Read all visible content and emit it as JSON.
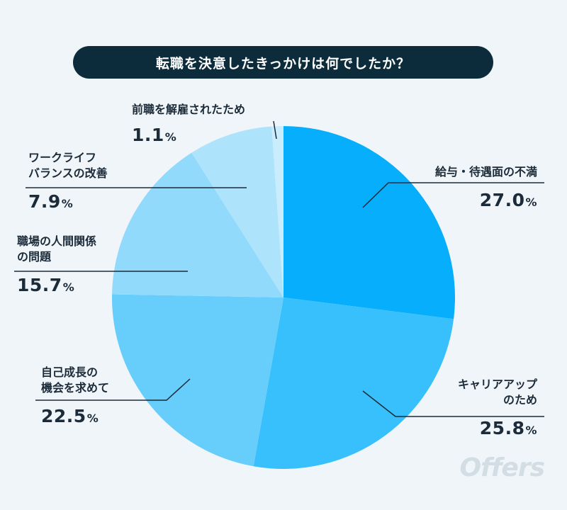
{
  "title": "転職を決意したきっかけは何でしたか？",
  "watermark": "Offers",
  "chart_data": {
    "type": "pie",
    "unit": "%",
    "start_angle_deg": 0,
    "direction": "clockwise",
    "colors": [
      "#06aefc",
      "#37c0fc",
      "#67cdfb",
      "#92dafc",
      "#aee3fc",
      "#c9edfd"
    ],
    "slices": [
      {
        "label_lines": [
          "給与・待遇面の不満"
        ],
        "value": 27.0,
        "value_text": "27.0"
      },
      {
        "label_lines": [
          "キャリアアップ",
          "のため"
        ],
        "value": 25.8,
        "value_text": "25.8"
      },
      {
        "label_lines": [
          "自己成長の",
          "機会を求めて"
        ],
        "value": 22.5,
        "value_text": "22.5"
      },
      {
        "label_lines": [
          "職場の人間関係",
          "の問題"
        ],
        "value": 15.7,
        "value_text": "15.7"
      },
      {
        "label_lines": [
          "ワークライフ",
          "バランスの改善"
        ],
        "value": 7.9,
        "value_text": "7.9"
      },
      {
        "label_lines": [
          "前職を解雇されたため"
        ],
        "value": 1.1,
        "value_text": "1.1"
      }
    ]
  }
}
